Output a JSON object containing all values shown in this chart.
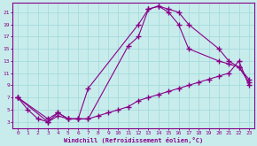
{
  "xlabel": "Windchill (Refroidissement éolien,°C)",
  "bg_color": "#c8ecec",
  "line_color": "#880088",
  "grid_color": "#aadddd",
  "xlim": [
    -0.5,
    23.5
  ],
  "ylim": [
    2,
    22.5
  ],
  "yticks": [
    3,
    5,
    7,
    9,
    11,
    13,
    15,
    17,
    19,
    21
  ],
  "xticks": [
    0,
    1,
    2,
    3,
    4,
    5,
    6,
    7,
    8,
    9,
    10,
    11,
    12,
    13,
    14,
    15,
    16,
    17,
    18,
    19,
    20,
    21,
    22,
    23
  ],
  "series": [
    {
      "x": [
        0,
        1,
        2,
        3,
        4,
        5,
        6,
        7,
        12,
        13,
        14,
        15,
        16,
        17,
        20,
        21,
        22,
        23
      ],
      "y": [
        7,
        5,
        3.5,
        3,
        4,
        3.5,
        3.5,
        8.5,
        19,
        21.5,
        22,
        21.5,
        21,
        19,
        15,
        13,
        12,
        10
      ]
    },
    {
      "x": [
        0,
        3,
        4,
        5,
        6,
        7,
        11,
        12,
        13,
        14,
        15,
        16,
        17,
        20,
        21,
        22,
        23
      ],
      "y": [
        7,
        3,
        4.5,
        3.5,
        3.5,
        3.5,
        15.5,
        17,
        21.5,
        22,
        21,
        19,
        15,
        13,
        12.5,
        12,
        9.5
      ]
    },
    {
      "x": [
        0,
        3,
        4,
        5,
        6,
        7,
        8,
        9,
        10,
        11,
        12,
        13,
        14,
        15,
        16,
        17,
        18,
        19,
        20,
        21,
        22,
        23
      ],
      "y": [
        7,
        3.5,
        4.5,
        3.5,
        3.5,
        3.5,
        4,
        4.5,
        5,
        5.5,
        6.5,
        7,
        7.5,
        8,
        8.5,
        9,
        9.5,
        10,
        10.5,
        11,
        13,
        9
      ]
    }
  ]
}
